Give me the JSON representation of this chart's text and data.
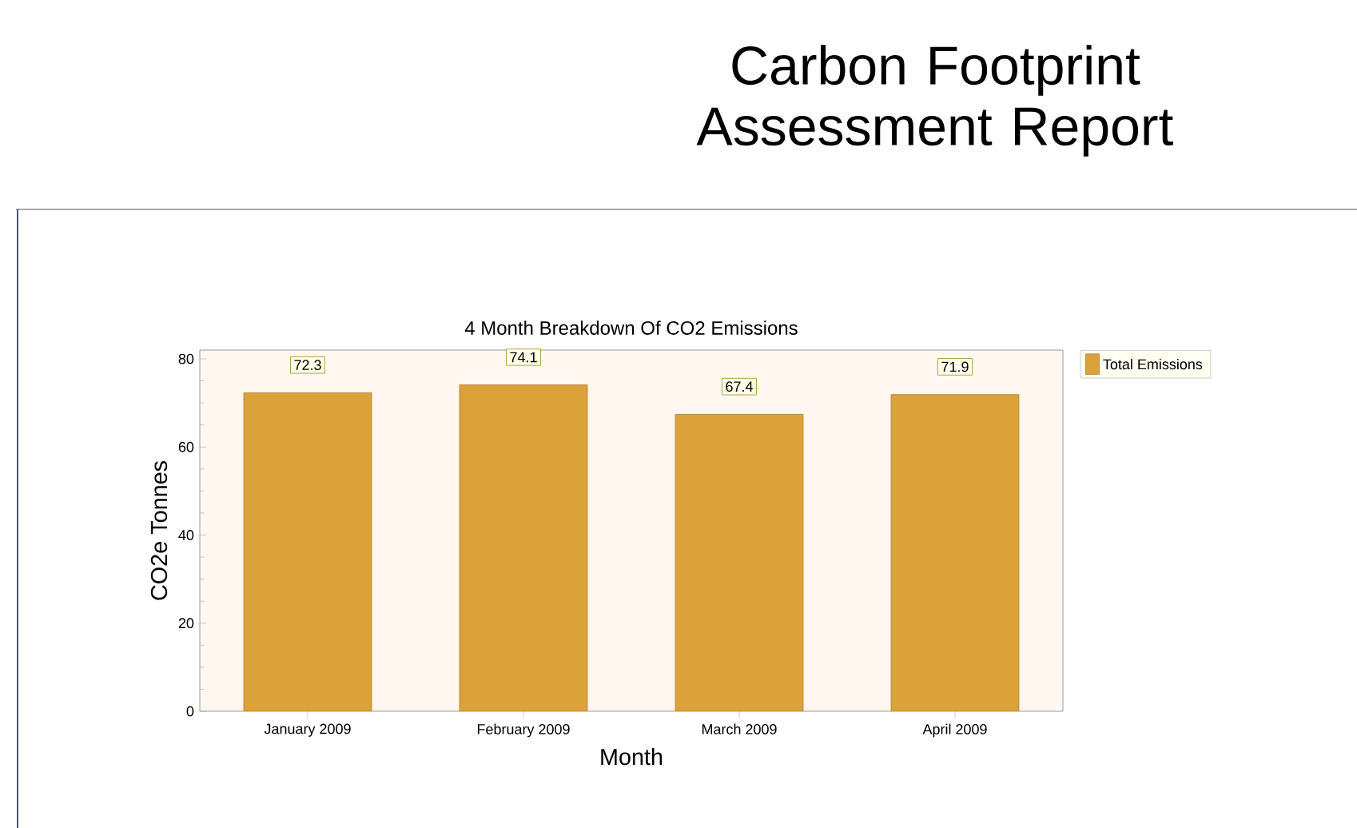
{
  "chart_data": {
    "type": "bar",
    "title": "Carbon Footprint Assessment Report",
    "subtitle": "4 Month Breakdown Of CO2 Emissions",
    "xlabel": "Month",
    "ylabel": "CO2e Tonnes",
    "categories": [
      "January 2009",
      "February 2009",
      "March 2009",
      "April 2009"
    ],
    "series": [
      {
        "name": "Total Emissions",
        "color": "#dca23a",
        "values": [
          72.3,
          74.1,
          67.4,
          71.9
        ]
      }
    ],
    "ylim": [
      0,
      82
    ],
    "yticks": [
      0,
      20,
      40,
      60,
      80
    ],
    "data_labels": true,
    "legend": "top right"
  }
}
